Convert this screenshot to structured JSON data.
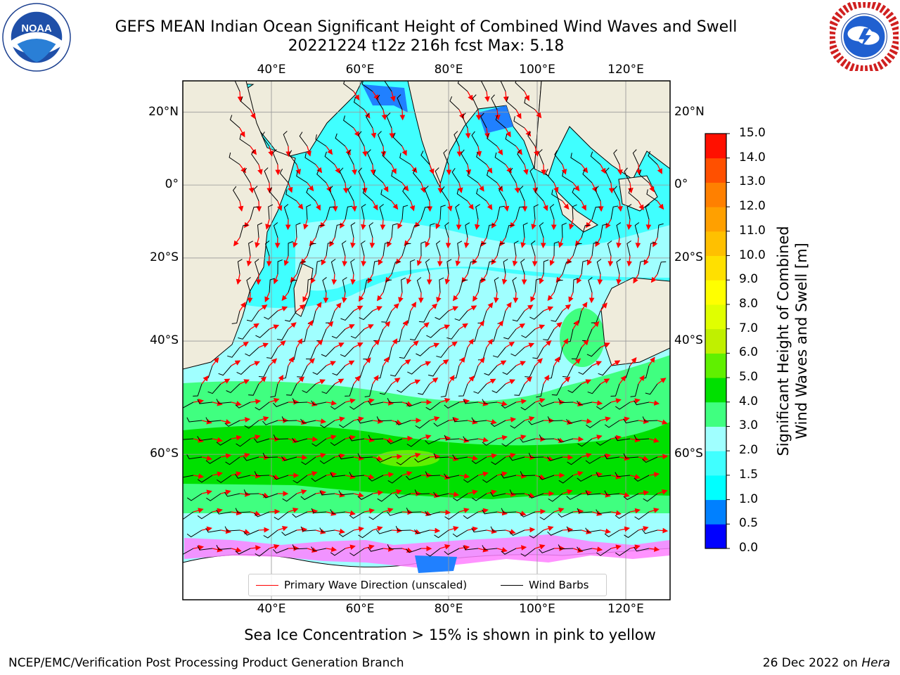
{
  "header": {
    "title_line1": "GEFS MEAN Indian Ocean Significant Height of Combined Wind Waves and Swell",
    "title_line2": "20221224 t12z 216h fcst   Max: 5.18"
  },
  "logos": {
    "left": {
      "name": "noaa-logo",
      "text": "NOAA",
      "ring_text": "NATIONAL OCEANIC AND ATMOSPHERIC ADMINISTRATION · U.S. DEPARTMENT OF COMMERCE"
    },
    "right": {
      "name": "nws-logo",
      "ring_text": "NATIONAL WEATHER SERVICE"
    }
  },
  "map": {
    "lon_ticks_top": [
      "40°E",
      "60°E",
      "80°E",
      "100°E",
      "120°E"
    ],
    "lon_ticks_bottom": [
      "40°E",
      "60°E",
      "80°E",
      "100°E",
      "120°E"
    ],
    "lat_ticks_left": [
      "20°N",
      "0°",
      "20°S",
      "40°S",
      "60°S"
    ],
    "lat_ticks_right": [
      "20°N",
      "0°",
      "20°S",
      "40°S",
      "60°S"
    ],
    "lon_range_deg_e": [
      20,
      130
    ],
    "lat_range_deg": [
      -75,
      28
    ],
    "projection": "Mercator",
    "grid": true,
    "colors": {
      "land": "#efecdc",
      "coast": "#000000",
      "wave_arrow": "#ff0000",
      "wind_barb": "#000000"
    }
  },
  "colorbar": {
    "label_line1": "Significant Height of Combined",
    "label_line2": "Wind Waves and Swell [m]",
    "ticks": [
      "0.0",
      "0.5",
      "1.0",
      "1.5",
      "2.0",
      "3.0",
      "4.0",
      "5.0",
      "6.0",
      "7.0",
      "8.0",
      "9.0",
      "10.0",
      "11.0",
      "12.0",
      "13.0",
      "14.0",
      "15.0"
    ],
    "colors": [
      "#0000ff",
      "#0080ff",
      "#00ffff",
      "#40ffff",
      "#a0ffff",
      "#40ff80",
      "#00e000",
      "#60f000",
      "#c0f000",
      "#e0ff00",
      "#ffff00",
      "#ffe000",
      "#ffc000",
      "#ffa000",
      "#ff8000",
      "#ff5000",
      "#ff1000"
    ]
  },
  "legend": {
    "wave_direction": "Primary Wave Direction (unscaled)",
    "wind_barbs": "Wind Barbs"
  },
  "notes": {
    "sea_ice": "Sea Ice Concentration > 15% is shown in pink to yellow"
  },
  "footer": {
    "left": "NCEP/EMC/Verification Post Processing Product Generation Branch",
    "right_prefix": "26 Dec 2022 on ",
    "right_host": "Hera"
  }
}
